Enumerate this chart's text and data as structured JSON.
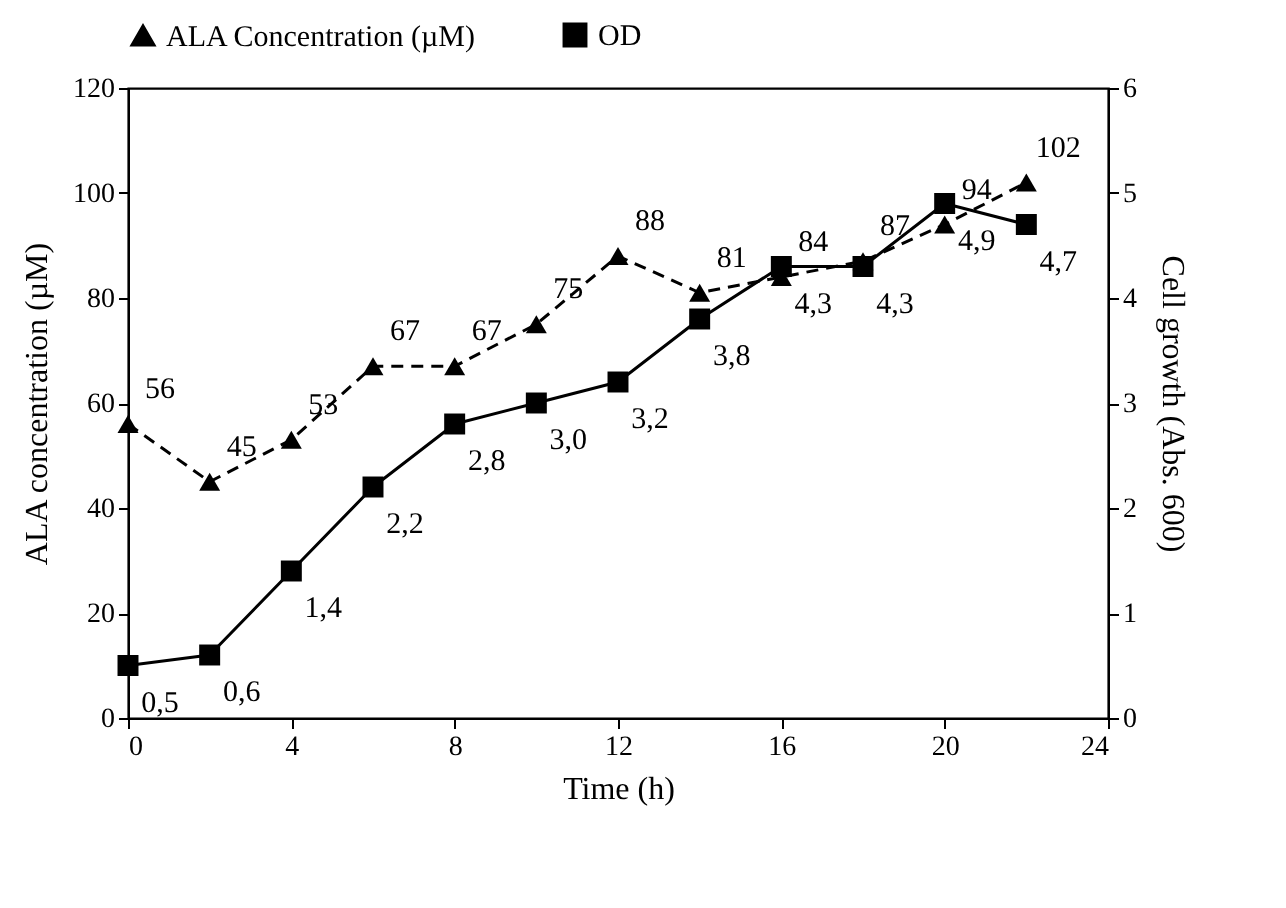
{
  "chart_data": {
    "type": "line",
    "xlabel": "Time (h)",
    "ylabel": "ALA concentration (µM)",
    "y2label": "Cell growth (Abs. 600)",
    "x": [
      0,
      2,
      4,
      6,
      8,
      10,
      12,
      14,
      16,
      18,
      20,
      22
    ],
    "xlim": [
      0,
      24
    ],
    "xticks": [
      0,
      4,
      8,
      12,
      16,
      20,
      24
    ],
    "ylim": [
      0,
      120
    ],
    "yticks": [
      0,
      20,
      40,
      60,
      80,
      100,
      120
    ],
    "y2lim": [
      0,
      6
    ],
    "y2ticks": [
      0,
      1,
      2,
      3,
      4,
      5,
      6
    ],
    "grid": false,
    "legend": "top",
    "series": [
      {
        "name": "ALA Concentration (µM)",
        "color": "#000000",
        "marker": "triangle",
        "line_style": "dashed",
        "values": [
          56,
          45,
          53,
          67,
          67,
          75,
          88,
          81,
          84,
          87,
          94,
          102
        ],
        "value_labels": [
          "56",
          "45",
          "53",
          "67",
          "67",
          "75",
          "88",
          "81",
          "84",
          "87",
          "94",
          "102"
        ]
      },
      {
        "name": "OD",
        "color": "#000000",
        "marker": "square",
        "line_style": "solid",
        "axis": "y2",
        "values": [
          0.5,
          0.6,
          1.4,
          2.2,
          2.8,
          3.0,
          3.2,
          3.8,
          4.3,
          4.3,
          4.9,
          4.7
        ],
        "value_labels": [
          "0,5",
          "0,6",
          "1,4",
          "2,2",
          "2,8",
          "3,0",
          "3,2",
          "3,8",
          "4,3",
          "4,3",
          "4,9",
          "4,7"
        ]
      }
    ]
  }
}
